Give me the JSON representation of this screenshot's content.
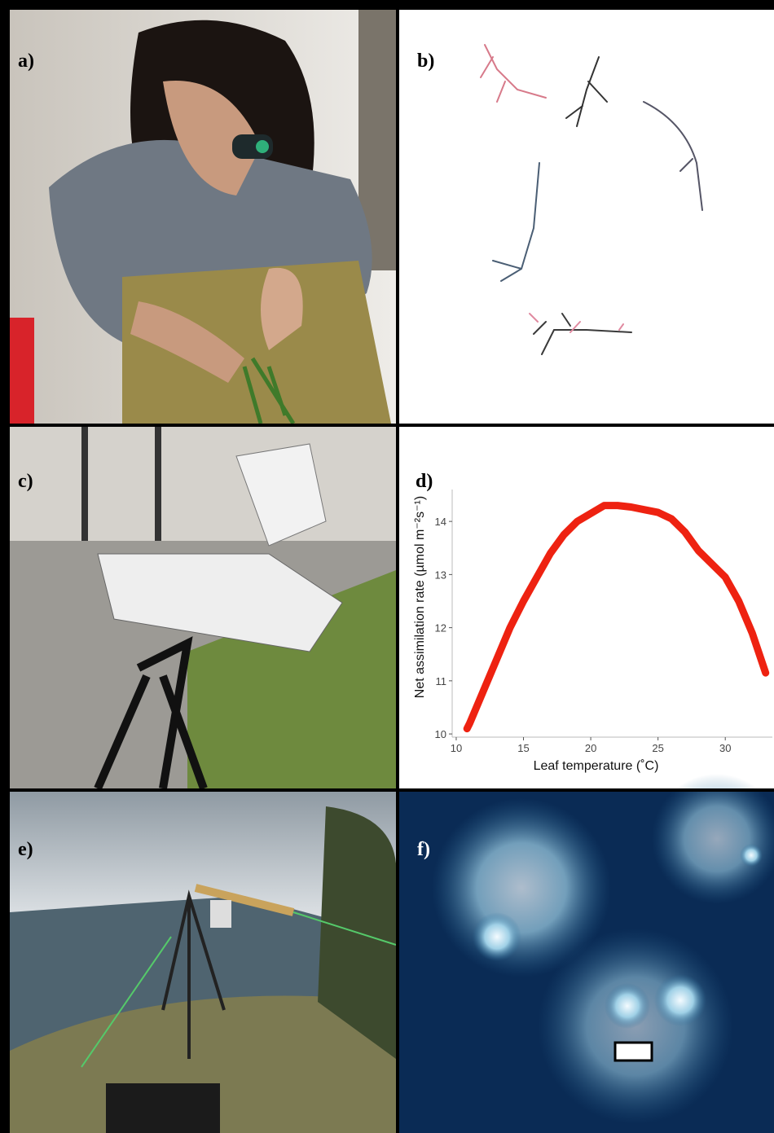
{
  "panels": [
    {
      "label": "a)"
    },
    {
      "label": "b)"
    },
    {
      "label": "c)"
    },
    {
      "label": "e)"
    },
    {
      "label": "f)"
    }
  ],
  "chart_data": {
    "type": "line",
    "label": "d)",
    "x_label": "Leaf temperature (˚C)",
    "y_label": "Net assimilation rate (µmol  m⁻²s⁻¹)",
    "x": [
      10.8,
      11,
      12,
      13,
      14,
      15,
      16,
      17,
      18,
      19,
      20,
      21,
      22,
      23,
      24,
      25,
      26,
      27,
      28,
      29,
      30,
      31,
      32,
      33
    ],
    "values": [
      10.1,
      10.2,
      10.8,
      11.4,
      12.0,
      12.5,
      12.95,
      13.4,
      13.75,
      14.0,
      14.15,
      14.3,
      14.3,
      14.27,
      14.22,
      14.17,
      14.05,
      13.8,
      13.45,
      13.2,
      12.95,
      12.5,
      11.9,
      11.15
    ],
    "color": "#ee2211",
    "xlim": [
      9.7,
      33.5
    ],
    "ylim": [
      9.94,
      14.6
    ],
    "xticks": [
      10,
      15,
      20,
      25,
      30
    ],
    "yticks": [
      10,
      11,
      12,
      13,
      14
    ],
    "grid": false
  }
}
